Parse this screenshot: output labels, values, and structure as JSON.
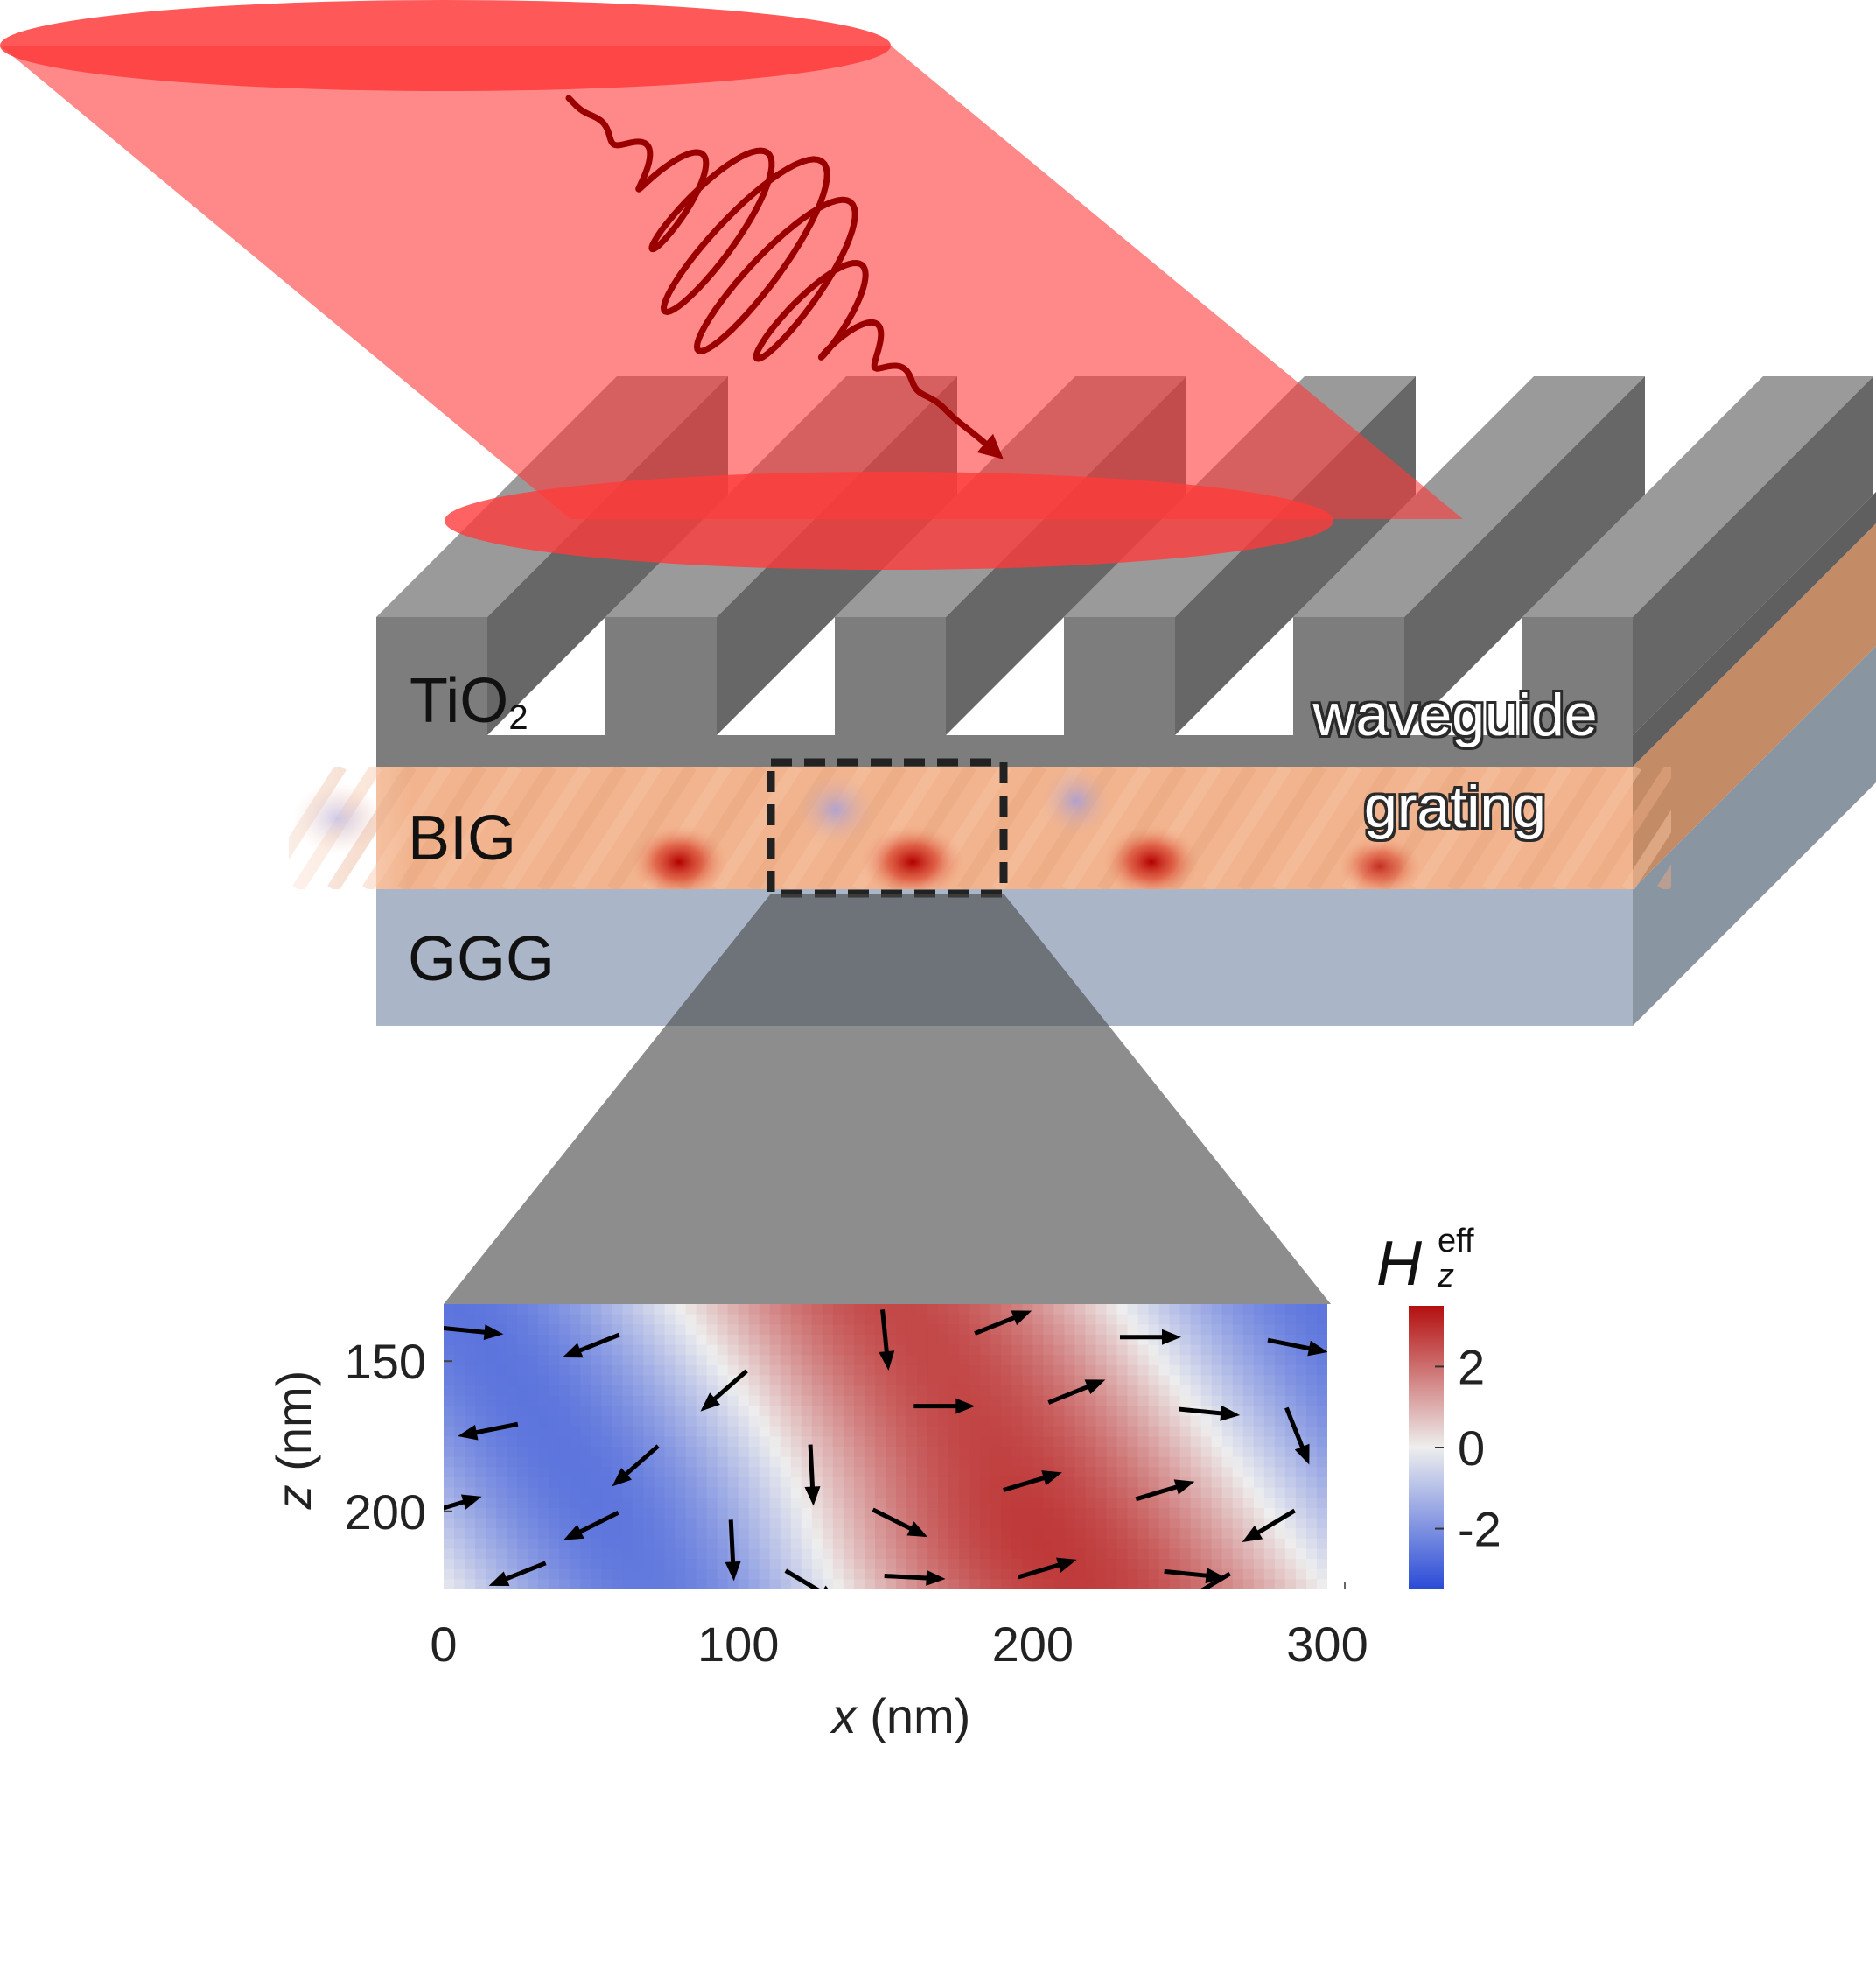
{
  "layers": {
    "tio2": {
      "label": "TiO",
      "subscript": "2",
      "color": "#7d7d7d"
    },
    "big": {
      "label": "BIG",
      "color": "#f2b48e"
    },
    "ggg": {
      "label": "GGG",
      "color": "#aab6c8"
    }
  },
  "callout": {
    "line1": "waveguide",
    "line2": "grating"
  },
  "beam": {
    "color": "#ff3b3b",
    "wavepacket_color": "#9b0000"
  },
  "inset": {
    "colorbar": {
      "symbol": "H",
      "superscript": "eff",
      "subscript": "z",
      "ticks": [
        "2",
        "0",
        "-2"
      ],
      "colors": {
        "max": "#b40f0f",
        "mid": "#eeeeee",
        "min": "#2a4bd7"
      }
    }
  },
  "chart_data": {
    "type": "heatmap",
    "title": "",
    "xlabel_var": "x",
    "xlabel_unit": " (nm)",
    "ylabel_var": "z",
    "ylabel_unit": " (nm)",
    "xlim": [
      0,
      300
    ],
    "ylim": [
      226,
      131
    ],
    "xticks": [
      0,
      100,
      200,
      300
    ],
    "yticks": [
      150,
      200
    ],
    "color_range": [
      -3.5,
      3.5
    ],
    "colorbar_ticks": [
      2,
      0,
      -2
    ],
    "field_model": "H(x,z) = 2.6*cos(2*pi*(x - 0.74*z - 57)/300) + 0.9*exp(-(((x-150)/55)^2 + ((z-226)/35)^2))",
    "arrows": [
      {
        "x": 10,
        "z": 140,
        "dx": 1,
        "dz": 0.1
      },
      {
        "x": 50,
        "z": 145,
        "dx": -1,
        "dz": 0.4
      },
      {
        "x": 95,
        "z": 160,
        "dx": -0.8,
        "dz": 0.7
      },
      {
        "x": 150,
        "z": 143,
        "dx": 0.1,
        "dz": 1
      },
      {
        "x": 190,
        "z": 137,
        "dx": 1,
        "dz": -0.4
      },
      {
        "x": 240,
        "z": 142,
        "dx": 1,
        "dz": 0
      },
      {
        "x": 290,
        "z": 145,
        "dx": 1,
        "dz": 0.2
      },
      {
        "x": 15,
        "z": 173,
        "dx": -1,
        "dz": 0.2
      },
      {
        "x": 65,
        "z": 185,
        "dx": -0.8,
        "dz": 0.7
      },
      {
        "x": 125,
        "z": 188,
        "dx": 0.05,
        "dz": 1
      },
      {
        "x": 170,
        "z": 165,
        "dx": 1,
        "dz": 0
      },
      {
        "x": 215,
        "z": 160,
        "dx": 1,
        "dz": -0.4
      },
      {
        "x": 260,
        "z": 167,
        "dx": 1,
        "dz": 0.1
      },
      {
        "x": 290,
        "z": 175,
        "dx": 0.4,
        "dz": 1
      },
      {
        "x": 3,
        "z": 198,
        "dx": 1,
        "dz": -0.3
      },
      {
        "x": 50,
        "z": 205,
        "dx": -1,
        "dz": 0.5
      },
      {
        "x": 98,
        "z": 213,
        "dx": 0.05,
        "dz": 1
      },
      {
        "x": 155,
        "z": 204,
        "dx": 1,
        "dz": 0.5
      },
      {
        "x": 200,
        "z": 190,
        "dx": 1,
        "dz": -0.3
      },
      {
        "x": 245,
        "z": 193,
        "dx": 1,
        "dz": -0.3
      },
      {
        "x": 280,
        "z": 205,
        "dx": -1,
        "dz": 0.6
      },
      {
        "x": 25,
        "z": 221,
        "dx": -1,
        "dz": 0.4
      },
      {
        "x": 125,
        "z": 225,
        "dx": 1,
        "dz": 0.6
      },
      {
        "x": 160,
        "z": 222,
        "dx": 1,
        "dz": 0.05
      },
      {
        "x": 205,
        "z": 219,
        "dx": 1,
        "dz": -0.3
      },
      {
        "x": 255,
        "z": 221,
        "dx": 1,
        "dz": 0.1
      },
      {
        "x": 258,
        "z": 226,
        "dx": -1,
        "dz": 0.6
      }
    ]
  }
}
